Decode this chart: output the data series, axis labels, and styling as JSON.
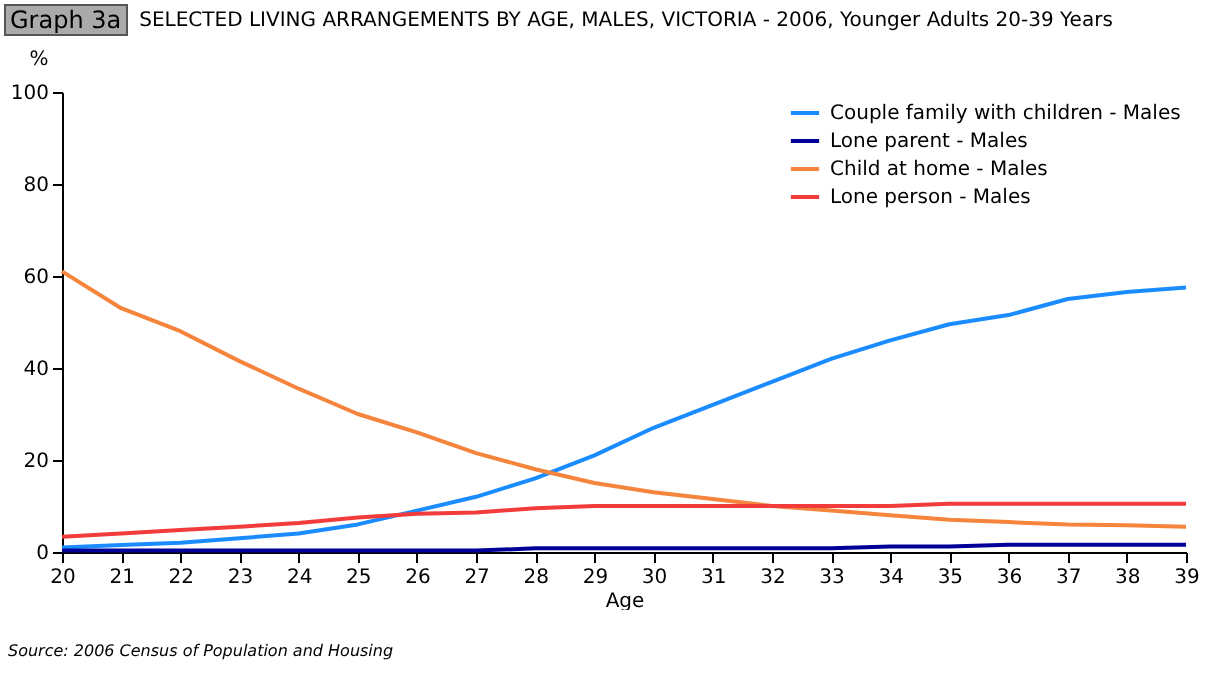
{
  "chart_data": {
    "type": "line",
    "title": "SELECTED LIVING ARRANGEMENTS BY AGE, MALES, VICTORIA - 2006, Younger Adults 20-39 Years",
    "xlabel": "Age",
    "ylabel": "%",
    "annotations": [
      "Graph 3a",
      "Source: 2006 Census of Population and Housing"
    ],
    "x": [
      20,
      21,
      22,
      23,
      24,
      25,
      26,
      27,
      28,
      29,
      30,
      31,
      32,
      33,
      34,
      35,
      36,
      37,
      38,
      39
    ],
    "xlim": [
      20,
      39
    ],
    "xticks": [
      20,
      21,
      22,
      23,
      24,
      25,
      26,
      27,
      28,
      29,
      30,
      31,
      32,
      33,
      34,
      35,
      36,
      37,
      38,
      39
    ],
    "ylim": [
      0,
      100
    ],
    "yticks": [
      0,
      20,
      40,
      60,
      80,
      100
    ],
    "legend": "top right",
    "series": [
      {
        "name": "Couple family with children - Males",
        "color": "#1a8cff",
        "values": [
          1,
          1.5,
          2,
          3,
          4,
          6,
          9,
          12,
          16,
          21,
          27,
          32,
          37,
          42,
          46,
          49.5,
          51.5,
          55,
          56.5,
          57.5
        ]
      },
      {
        "name": "Lone parent - Males",
        "color": "#000099",
        "values": [
          0.3,
          0.3,
          0.3,
          0.3,
          0.3,
          0.3,
          0.3,
          0.3,
          0.8,
          0.8,
          0.8,
          0.8,
          0.8,
          0.8,
          1.2,
          1.2,
          1.6,
          1.6,
          1.6,
          1.6
        ]
      },
      {
        "name": "Child at home - Males",
        "color": "#f5843c",
        "values": [
          61,
          53,
          48,
          41.5,
          35.5,
          30,
          26,
          21.5,
          18,
          15,
          13,
          11.5,
          10,
          9,
          8,
          7,
          6.5,
          6,
          5.8,
          5.5
        ]
      },
      {
        "name": "Lone person - Males",
        "color": "#f23c3c",
        "values": [
          3.3,
          4,
          4.8,
          5.5,
          6.3,
          7.5,
          8.3,
          8.6,
          9.5,
          10,
          10,
          10,
          10,
          10,
          10,
          10.5,
          10.5,
          10.5,
          10.5,
          10.5
        ]
      }
    ]
  }
}
